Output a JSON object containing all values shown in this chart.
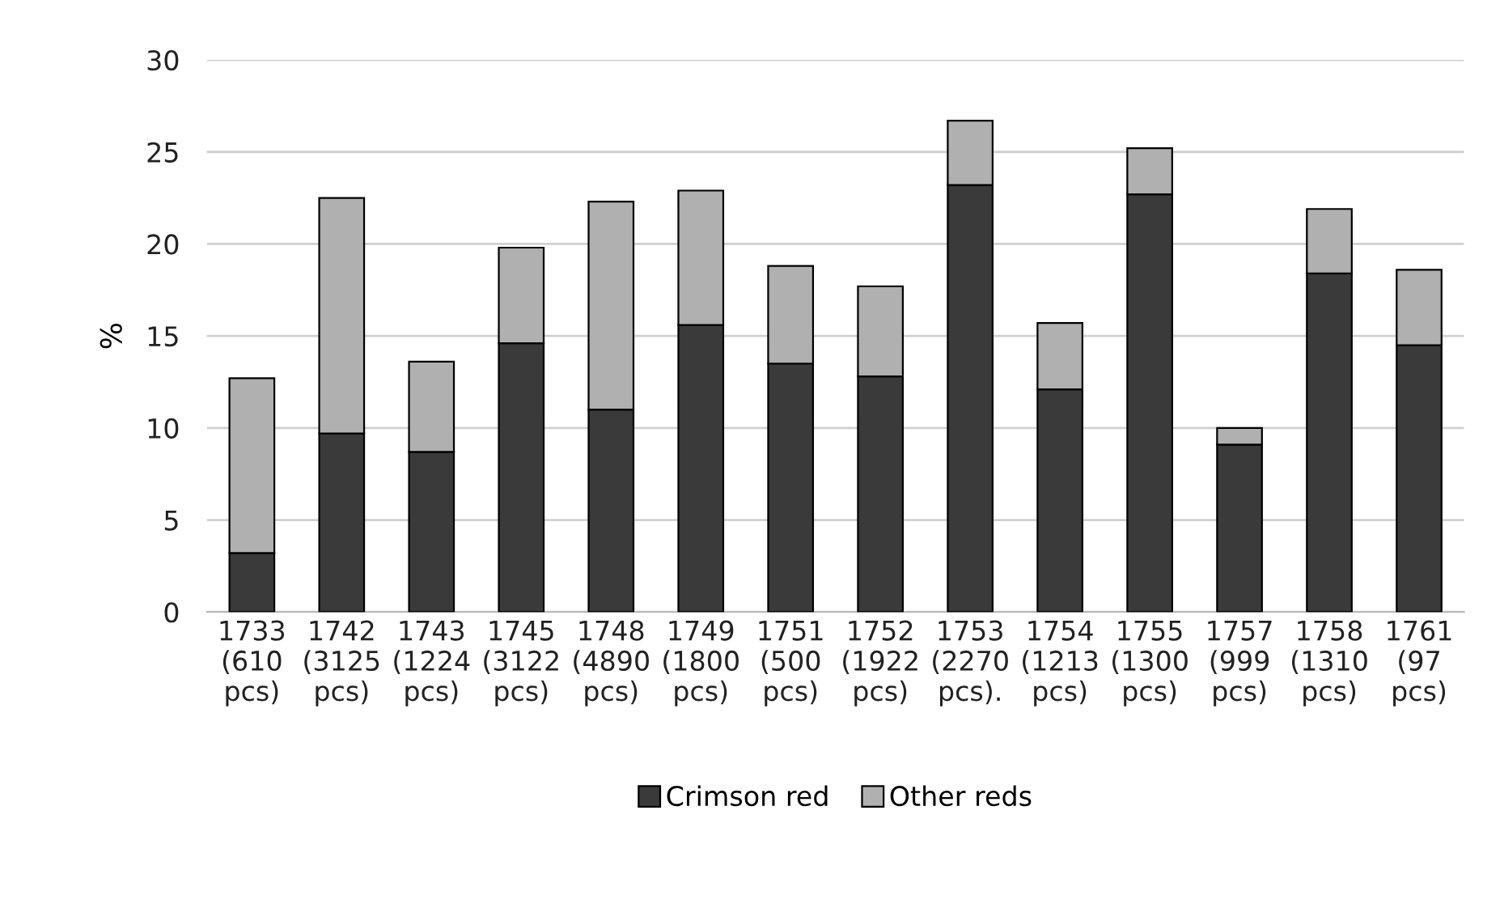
{
  "chart_data": {
    "type": "bar",
    "stacked": true,
    "ylabel": "%",
    "categories": [
      "1733\n(610\npcs)",
      "1742\n(3125\npcs)",
      "1743\n(1224\npcs)",
      "1745\n(3122\npcs)",
      "1748\n(4890\npcs)",
      "1749\n(1800\npcs)",
      "1751\n(500\npcs)",
      "1752\n(1922\npcs)",
      "1753\n(2270\npcs).",
      "1754\n(1213\npcs)",
      "1755\n(1300\npcs)",
      "1757\n(999\npcs)",
      "1758\n(1310\npcs)",
      "1761\n(97\npcs)"
    ],
    "series": [
      {
        "name": "Crimson red",
        "color": "#3a3a3a",
        "values": [
          3.2,
          9.7,
          8.7,
          14.6,
          11.0,
          15.6,
          13.5,
          12.8,
          23.2,
          12.1,
          22.7,
          9.1,
          18.4,
          14.5
        ]
      },
      {
        "name": "Other reds",
        "color": "#b0b0b0",
        "values": [
          9.5,
          12.8,
          4.9,
          5.2,
          11.3,
          7.3,
          5.3,
          4.9,
          3.5,
          3.6,
          2.5,
          0.9,
          3.5,
          4.1
        ]
      }
    ],
    "ylim": [
      0,
      30
    ],
    "yticks": [
      0,
      5,
      10,
      15,
      20,
      25,
      30
    ],
    "grid": "y",
    "legend": "bottom"
  }
}
